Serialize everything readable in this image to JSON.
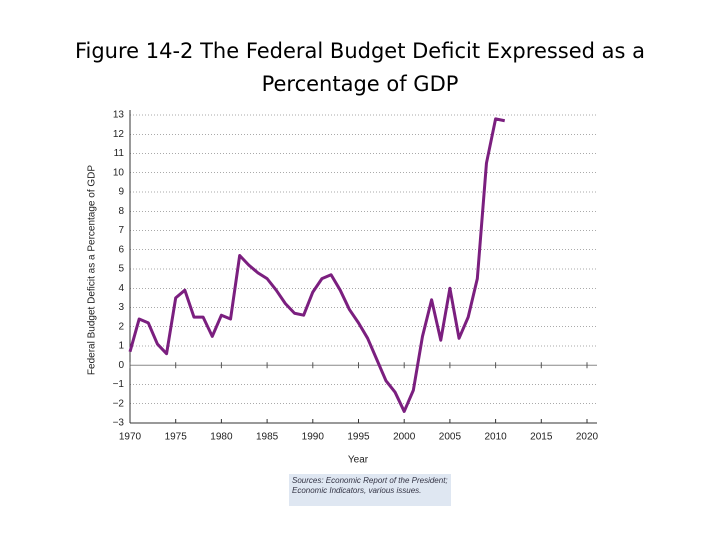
{
  "chart_data": {
    "type": "line",
    "title": "Figure 14-2  The Federal Budget Deficit Expressed as a Percentage of GDP",
    "x_label": "Year",
    "y_label": "Federal Budget Deficit as a Percentage of GDP",
    "source": "Sources: Economic Report of the President; Economic Indicators, various issues.",
    "x": [
      1970,
      1971,
      1972,
      1973,
      1974,
      1975,
      1976,
      1977,
      1978,
      1979,
      1980,
      1981,
      1982,
      1983,
      1984,
      1985,
      1986,
      1987,
      1988,
      1989,
      1990,
      1991,
      1992,
      1993,
      1994,
      1995,
      1996,
      1997,
      1998,
      1999,
      2000,
      2001,
      2002,
      2003,
      2004,
      2005,
      2006,
      2007,
      2008,
      2009,
      2010,
      2011
    ],
    "series": [
      {
        "name": "Deficit",
        "color": "#7b1f7f",
        "values": [
          0.7,
          2.4,
          2.2,
          1.1,
          0.6,
          3.5,
          3.9,
          2.5,
          2.5,
          1.5,
          2.6,
          2.4,
          5.7,
          5.2,
          4.8,
          4.5,
          3.9,
          3.2,
          2.7,
          2.6,
          3.8,
          4.5,
          4.7,
          3.9,
          2.9,
          2.2,
          1.4,
          0.3,
          -0.8,
          -1.4,
          -2.4,
          -1.3,
          1.5,
          3.4,
          1.3,
          4.0,
          1.4,
          2.5,
          4.5,
          10.5,
          12.8,
          12.7
        ]
      }
    ],
    "xlim": [
      1970,
      2020
    ],
    "xticks": [
      1970,
      1975,
      1980,
      1985,
      1990,
      1995,
      2000,
      2005,
      2010,
      2015,
      2020
    ],
    "ylim": [
      -3,
      13
    ],
    "yticks": [
      {
        "value": -3,
        "label": "−3"
      },
      {
        "value": -2,
        "label": "−2"
      },
      {
        "value": -1,
        "label": "−1"
      },
      0,
      1,
      2,
      3,
      4,
      5,
      6,
      7,
      8,
      9,
      10,
      11,
      12,
      13
    ],
    "grid": true
  }
}
